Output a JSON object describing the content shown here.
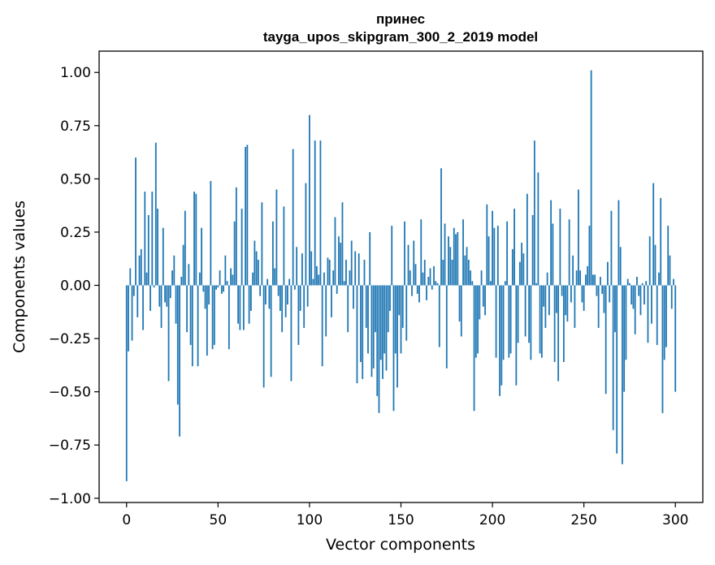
{
  "chart_data": {
    "type": "bar",
    "title_line1": "принес",
    "title_line2": "tayga_upos_skipgram_300_2_2019 model",
    "xlabel": "Vector components",
    "ylabel": "Components values",
    "xlim": [
      -15,
      315
    ],
    "ylim": [
      -1.02,
      1.1
    ],
    "xticks": [
      0,
      50,
      100,
      150,
      200,
      250,
      300
    ],
    "yticks": [
      -1.0,
      -0.75,
      -0.5,
      -0.25,
      0.0,
      0.25,
      0.5,
      0.75,
      1.0
    ],
    "ytick_labels": [
      "−1.00",
      "−0.75",
      "−0.50",
      "−0.25",
      "0.00",
      "0.25",
      "0.50",
      "0.75",
      "1.00"
    ],
    "grid": false,
    "color": "#1f77b4",
    "values": [
      -0.92,
      -0.31,
      0.08,
      -0.26,
      -0.05,
      0.6,
      -0.15,
      0.14,
      0.17,
      -0.21,
      0.44,
      0.06,
      0.33,
      -0.12,
      0.44,
      -0.01,
      0.67,
      0.36,
      -0.1,
      -0.2,
      0.27,
      -0.08,
      -0.1,
      -0.45,
      -0.06,
      0.07,
      0.14,
      -0.18,
      -0.56,
      -0.71,
      0.04,
      0.19,
      0.35,
      -0.22,
      0.1,
      -0.28,
      -0.38,
      0.44,
      0.43,
      -0.38,
      0.06,
      0.27,
      -0.03,
      -0.11,
      -0.33,
      -0.09,
      0.49,
      -0.3,
      -0.28,
      -0.02,
      -0.01,
      0.07,
      -0.04,
      -0.03,
      0.14,
      0.02,
      -0.3,
      0.08,
      0.05,
      0.3,
      0.46,
      -0.18,
      -0.21,
      0.36,
      -0.21,
      0.65,
      0.66,
      -0.18,
      -0.12,
      0.06,
      0.21,
      0.16,
      0.12,
      -0.05,
      0.39,
      -0.48,
      -0.09,
      0.03,
      -0.11,
      -0.43,
      0.3,
      0.08,
      0.45,
      -0.05,
      -0.12,
      -0.22,
      0.37,
      -0.15,
      -0.09,
      0.03,
      -0.45,
      0.64,
      -0.02,
      0.18,
      -0.28,
      -0.12,
      0.15,
      -0.2,
      0.48,
      -0.1,
      0.8,
      0.16,
      0.03,
      0.68,
      0.09,
      0.05,
      0.68,
      -0.38,
      0.06,
      -0.24,
      0.13,
      0.12,
      -0.15,
      0.07,
      0.32,
      -0.04,
      0.23,
      0.2,
      0.39,
      0.02,
      0.12,
      -0.22,
      0.07,
      0.21,
      -0.11,
      0.16,
      -0.46,
      0.15,
      -0.36,
      -0.44,
      0.12,
      -0.2,
      -0.32,
      0.25,
      -0.43,
      -0.39,
      -0.22,
      -0.52,
      -0.6,
      -0.35,
      -0.44,
      -0.32,
      -0.4,
      -0.22,
      -0.12,
      0.28,
      -0.59,
      -0.32,
      -0.48,
      -0.14,
      -0.32,
      -0.2,
      0.3,
      -0.26,
      0.19,
      0.07,
      -0.05,
      0.21,
      0.1,
      -0.04,
      -0.08,
      0.31,
      0.06,
      0.12,
      -0.07,
      0.04,
      0.08,
      -0.02,
      0.09,
      0.02,
      0.01,
      -0.29,
      0.55,
      0.12,
      0.29,
      -0.39,
      0.23,
      0.18,
      0.12,
      0.27,
      0.24,
      0.25,
      -0.17,
      -0.24,
      0.31,
      0.14,
      0.18,
      0.12,
      0.07,
      0.02,
      -0.59,
      -0.34,
      -0.32,
      -0.16,
      0.07,
      -0.1,
      -0.14,
      0.38,
      0.23,
      0.02,
      0.35,
      0.27,
      -0.34,
      0.28,
      -0.52,
      -0.47,
      -0.35,
      0.02,
      0.3,
      -0.34,
      -0.32,
      0.17,
      0.36,
      -0.47,
      -0.27,
      0.11,
      0.2,
      0.15,
      -0.24,
      0.43,
      -0.27,
      -0.35,
      0.33,
      0.68,
      0.01,
      0.53,
      -0.32,
      -0.34,
      -0.1,
      -0.2,
      0.06,
      -0.14,
      0.4,
      0.29,
      -0.36,
      -0.13,
      -0.45,
      0.36,
      -0.05,
      -0.36,
      -0.14,
      -0.17,
      0.31,
      -0.08,
      0.14,
      -0.2,
      0.07,
      0.45,
      0.07,
      -0.08,
      -0.12,
      0.05,
      0.09,
      0.28,
      1.01,
      0.05,
      0.05,
      -0.05,
      -0.2,
      0.04,
      -0.04,
      -0.13,
      -0.51,
      0.11,
      -0.08,
      0.35,
      -0.68,
      -0.22,
      -0.79,
      0.4,
      0.18,
      -0.84,
      -0.5,
      -0.35,
      0.03,
      0.01,
      -0.09,
      -0.11,
      -0.23,
      0.04,
      -0.05,
      -0.14,
      0.01,
      -0.09,
      0.02,
      -0.27,
      0.23,
      -0.18,
      0.48,
      0.19,
      -0.28,
      0.06,
      0.41,
      -0.6,
      -0.35,
      -0.29,
      0.28,
      0.14,
      -0.11,
      0.03,
      -0.5
    ]
  }
}
